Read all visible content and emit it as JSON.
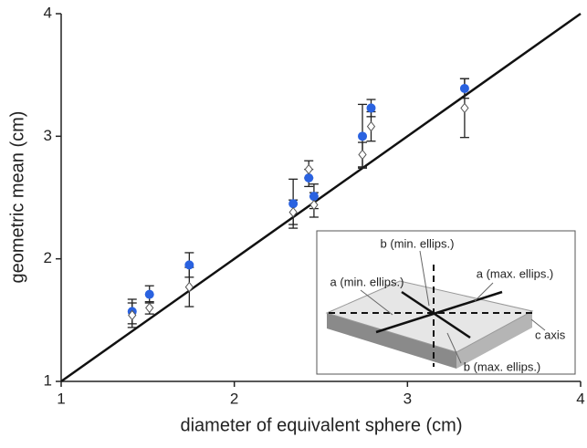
{
  "chart_data": {
    "type": "scatter",
    "x_label": "diameter of equivalent sphere (cm)",
    "y_label": "geometric mean (cm)",
    "x": [
      1.41,
      1.51,
      1.74,
      2.34,
      2.43,
      2.46,
      2.74,
      2.79,
      3.33
    ],
    "series": [
      {
        "color": "#2a62e0",
        "marker": "circle",
        "values": [
          1.57,
          1.71,
          1.95,
          2.45,
          2.66,
          2.51,
          3.0,
          3.23,
          3.39
        ],
        "errors": [
          0.1,
          0.07,
          0.1,
          0.2,
          0.07,
          0.1,
          0.26,
          0.07,
          0.08
        ]
      },
      {
        "color": "#ffffff",
        "marker": "diamond",
        "values": [
          1.54,
          1.6,
          1.77,
          2.38,
          2.73,
          2.44,
          2.85,
          3.08,
          3.23
        ],
        "errors": [
          0.1,
          0.05,
          0.16,
          0.1,
          0.07,
          0.1,
          0.1,
          0.12,
          0.24
        ]
      }
    ],
    "xlim": [
      1,
      4
    ],
    "ylim": [
      1,
      4
    ],
    "xticks": [
      1,
      2,
      3,
      4
    ],
    "yticks": [
      1,
      2,
      3,
      4
    ],
    "grid": false,
    "inset_labels": [
      "b (min. ellips.)",
      "a (min. ellips.)",
      "a (max. ellips.)",
      "c axis",
      "b (max. ellips.)"
    ]
  }
}
